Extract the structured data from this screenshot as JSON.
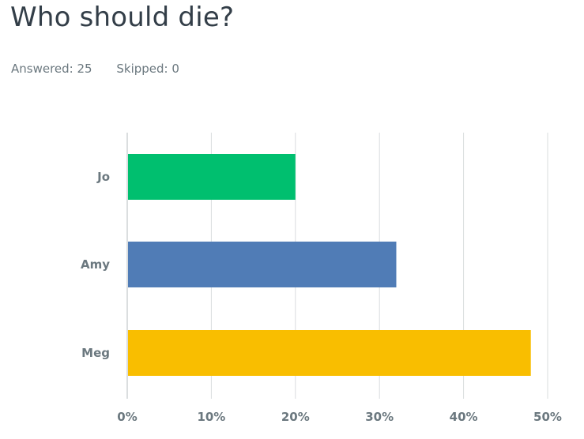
{
  "question": {
    "title": "Who should die?",
    "answered_label": "Answered:",
    "answered_count": "25",
    "skipped_label": "Skipped:",
    "skipped_count": "0"
  },
  "chart_data": {
    "type": "bar",
    "orientation": "horizontal",
    "title": "Who should die?",
    "categories": [
      "Jo",
      "Amy",
      "Meg"
    ],
    "values": [
      20,
      32,
      48
    ],
    "value_unit": "%",
    "colors": [
      "#00bf6f",
      "#507cb6",
      "#f9be00"
    ],
    "xlim": [
      0,
      50
    ],
    "xticks": [
      0,
      10,
      20,
      30,
      40,
      50
    ],
    "xtick_labels": [
      "0%",
      "10%",
      "20%",
      "30%",
      "40%",
      "50%"
    ],
    "grid": true,
    "xlabel": "",
    "ylabel": ""
  },
  "colors": {
    "gridline": "#d9dcde",
    "axis": "#b7bcbf",
    "title_text": "#333e48",
    "muted_text": "#6b787f"
  }
}
